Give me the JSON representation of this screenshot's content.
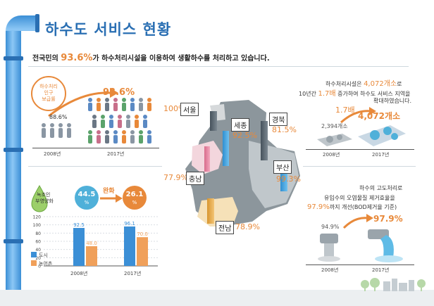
{
  "header": {
    "title": "하수도 서비스 현황",
    "subtitle_prefix": "전국민의 ",
    "subtitle_highlight": "93.6%",
    "subtitle_suffix": "가 하수처리시설을 이용하여 생활하수를 처리하고 있습니다."
  },
  "population": {
    "badge_line1": "하수처리",
    "badge_line2": "인구",
    "badge_line3": "보급률",
    "value_2008": "88.6%",
    "value_2017": "93.6%",
    "year_2008": "2008년",
    "year_2017": "2017년"
  },
  "eutrophication": {
    "label_line1": "녹조인",
    "label_line2": "부영양화",
    "value_before": "44.5",
    "value_after": "26.1",
    "unit": "%",
    "relief_label": "완화",
    "ticks": [
      "120",
      "100",
      "80",
      "60",
      "40",
      "20",
      "0"
    ],
    "legend_city": "도시",
    "legend_rural": "농어촌",
    "years": [
      "2008년",
      "2017년"
    ],
    "bars_2008": {
      "city": 92.5,
      "rural": 48.0
    },
    "bars_2017": {
      "city": 96.1,
      "rural": 70.0
    },
    "bar_labels_2008": {
      "city": "92.5",
      "rural": "48.0"
    },
    "bar_labels_2017": {
      "city": "96.1",
      "rural": "70.0"
    }
  },
  "regions": [
    {
      "name": "서울",
      "value": "100",
      "unit": "%"
    },
    {
      "name": "세종",
      "value": "92.5",
      "unit": "%"
    },
    {
      "name": "경북",
      "value": "81.5",
      "unit": "%"
    },
    {
      "name": "충남",
      "value": "77.9",
      "unit": "%"
    },
    {
      "name": "부산",
      "value": "99.3",
      "unit": "%"
    },
    {
      "name": "전남",
      "value": "78.9",
      "unit": "%"
    }
  ],
  "facilities": {
    "line1_prefix": "하수처리시설은 ",
    "line1_highlight": "4,072개소",
    "line1_suffix": "로",
    "line2_prefix": "10년간 ",
    "line2_highlight": "1.7배",
    "line2_suffix": " 증가하여 하수도 서비스 지역을",
    "line3": "확대하였습니다.",
    "ratio": "1.7배",
    "count_2008": "2,394개소",
    "count_2017": "4,072개소",
    "year_2008": "2008년",
    "year_2017": "2017년"
  },
  "water_quality": {
    "line1": "하수의 고도처리로",
    "line2": "유입수의 오염물질 제거효율을",
    "line3_highlight": "97.9%",
    "line3_suffix": "까지 개선(BOD제거율 기준)",
    "value_2008": "94.9%",
    "value_2017": "97.9%",
    "year_2008": "2008년",
    "year_2017": "2017년"
  },
  "colors": {
    "accent_blue": "#2a6fb3",
    "accent_orange": "#e8893a",
    "bar_city": "#3b8fd6",
    "bar_rural": "#f0a05a"
  }
}
